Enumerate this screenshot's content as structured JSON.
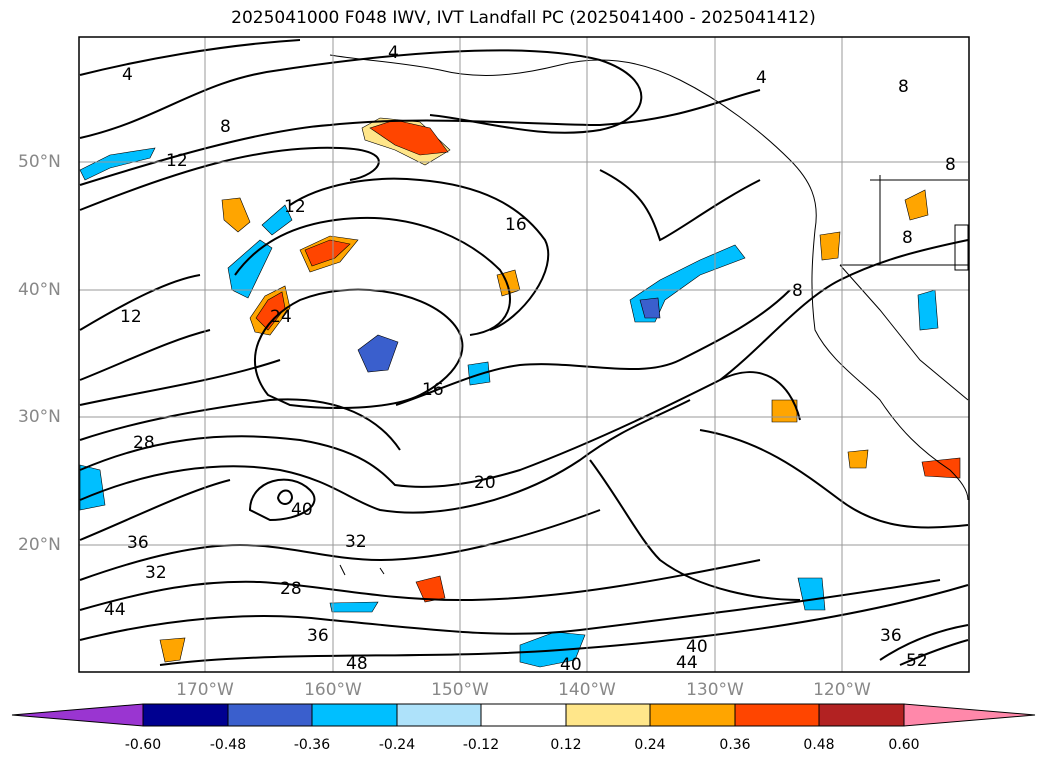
{
  "title": "2025041000 F048 IWV, IVT Landfall PC (2025041400 - 2025041412)",
  "lat_labels": [
    "50°N",
    "40°N",
    "30°N",
    "20°N"
  ],
  "lon_labels": [
    "170°W",
    "160°W",
    "150°W",
    "140°W",
    "130°W",
    "120°W"
  ],
  "contour_labels": [
    "4",
    "8",
    "12",
    "12",
    "12",
    "16",
    "16",
    "20",
    "24",
    "28",
    "28",
    "32",
    "32",
    "36",
    "36",
    "36",
    "40",
    "40",
    "40",
    "44",
    "44",
    "48",
    "52",
    "8",
    "8",
    "8",
    "4",
    "4",
    "8"
  ],
  "colorbar": {
    "ticks": [
      "-0.60",
      "-0.48",
      "-0.36",
      "-0.24",
      "-0.12",
      "0.12",
      "0.24",
      "0.36",
      "0.48",
      "0.60"
    ],
    "colors": [
      "#9a35d1",
      "#000090",
      "#3a5fcd",
      "#00bfff",
      "#aee2fa",
      "#ffffff",
      "#ffe68a",
      "#ffa500",
      "#ff4500",
      "#b22222",
      "#ff88aa"
    ]
  }
}
